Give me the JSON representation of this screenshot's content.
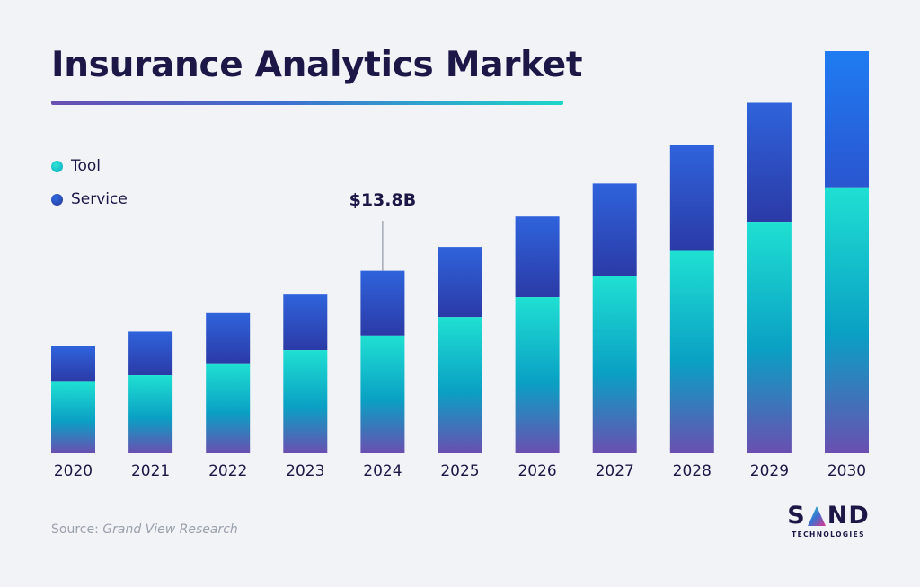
{
  "title": "Insurance Analytics Market",
  "legend": [
    {
      "label": "Tool",
      "color": "#14c9cf"
    },
    {
      "label": "Service",
      "color": "#2a4cc4"
    }
  ],
  "annotation": {
    "label": "$13.8B",
    "year": "2024"
  },
  "source": {
    "prefix": "Source: ",
    "name": "Grand View Research"
  },
  "logo": {
    "word": "SAND",
    "sub": "TECHNOLOGIES"
  },
  "chart_data": {
    "type": "bar",
    "stacked": true,
    "categories": [
      "2020",
      "2021",
      "2022",
      "2023",
      "2024",
      "2025",
      "2026",
      "2027",
      "2028",
      "2029",
      "2030"
    ],
    "series": [
      {
        "name": "Tool",
        "values": [
          5.4,
          5.9,
          6.8,
          7.8,
          8.9,
          10.3,
          11.8,
          13.4,
          15.3,
          17.5,
          20.1
        ],
        "color": "#14c9cf"
      },
      {
        "name": "Service",
        "values": [
          2.7,
          3.3,
          3.8,
          4.2,
          4.9,
          5.3,
          6.1,
          7.0,
          8.0,
          9.0,
          10.3
        ],
        "color": "#2a4cc4"
      }
    ],
    "ylim": [
      0,
      30.4
    ],
    "grid": false,
    "legend_position": "top-left"
  }
}
